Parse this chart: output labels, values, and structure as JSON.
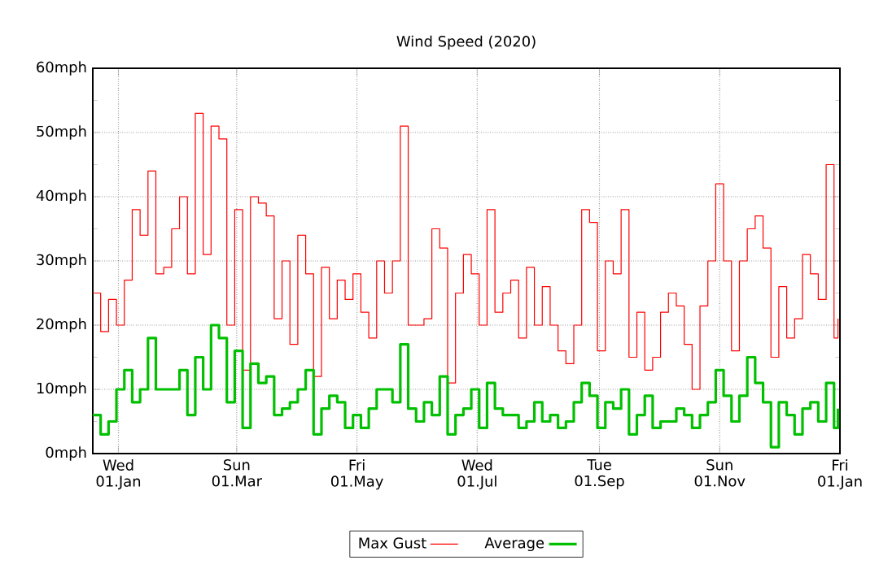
{
  "chart_data": {
    "type": "step",
    "title": "Wind Speed (2020)",
    "x": [
      "2019-12-19",
      "2019-12-23",
      "2019-12-27",
      "2019-12-31",
      "2020-01-04",
      "2020-01-08",
      "2020-01-12",
      "2020-01-16",
      "2020-01-20",
      "2020-01-24",
      "2020-01-28",
      "2020-02-01",
      "2020-02-05",
      "2020-02-09",
      "2020-02-13",
      "2020-02-17",
      "2020-02-21",
      "2020-02-25",
      "2020-02-29",
      "2020-03-04",
      "2020-03-08",
      "2020-03-12",
      "2020-03-16",
      "2020-03-20",
      "2020-03-24",
      "2020-03-28",
      "2020-04-01",
      "2020-04-05",
      "2020-04-09",
      "2020-04-13",
      "2020-04-17",
      "2020-04-21",
      "2020-04-25",
      "2020-04-29",
      "2020-05-03",
      "2020-05-07",
      "2020-05-11",
      "2020-05-15",
      "2020-05-19",
      "2020-05-23",
      "2020-05-27",
      "2020-05-31",
      "2020-06-04",
      "2020-06-08",
      "2020-06-12",
      "2020-06-16",
      "2020-06-20",
      "2020-06-24",
      "2020-06-28",
      "2020-07-02",
      "2020-07-06",
      "2020-07-10",
      "2020-07-14",
      "2020-07-18",
      "2020-07-22",
      "2020-07-26",
      "2020-07-30",
      "2020-08-03",
      "2020-08-07",
      "2020-08-11",
      "2020-08-15",
      "2020-08-19",
      "2020-08-23",
      "2020-08-27",
      "2020-08-31",
      "2020-09-04",
      "2020-09-08",
      "2020-09-12",
      "2020-09-16",
      "2020-09-20",
      "2020-09-24",
      "2020-09-28",
      "2020-10-02",
      "2020-10-06",
      "2020-10-10",
      "2020-10-14",
      "2020-10-18",
      "2020-10-22",
      "2020-10-26",
      "2020-10-30",
      "2020-11-03",
      "2020-11-07",
      "2020-11-11",
      "2020-11-15",
      "2020-11-19",
      "2020-11-23",
      "2020-11-27",
      "2020-12-01",
      "2020-12-05",
      "2020-12-09",
      "2020-12-13",
      "2020-12-17",
      "2020-12-21",
      "2020-12-25",
      "2020-12-29",
      "2020-12-31"
    ],
    "series": [
      {
        "name": "Max Gust",
        "color": "#ff0000",
        "values": [
          25,
          19,
          24,
          20,
          27,
          38,
          34,
          44,
          28,
          29,
          35,
          40,
          28,
          53,
          31,
          51,
          49,
          20,
          38,
          13,
          40,
          39,
          37,
          21,
          30,
          17,
          34,
          28,
          12,
          29,
          21,
          27,
          24,
          28,
          22,
          18,
          30,
          25,
          30,
          51,
          20,
          20,
          21,
          35,
          32,
          11,
          25,
          31,
          28,
          20,
          38,
          22,
          25,
          27,
          18,
          29,
          20,
          26,
          20,
          16,
          14,
          20,
          38,
          36,
          16,
          30,
          28,
          38,
          15,
          22,
          13,
          15,
          22,
          25,
          23,
          17,
          10,
          23,
          30,
          42,
          30,
          16,
          30,
          35,
          37,
          32,
          15,
          26,
          18,
          21,
          31,
          28,
          24,
          45,
          18,
          21
        ]
      },
      {
        "name": "Average",
        "color": "#00c000",
        "values": [
          6,
          3,
          5,
          10,
          13,
          8,
          10,
          18,
          10,
          10,
          10,
          13,
          6,
          15,
          10,
          20,
          18,
          8,
          16,
          4,
          14,
          11,
          12,
          6,
          7,
          8,
          10,
          13,
          3,
          7,
          9,
          8,
          4,
          6,
          4,
          7,
          10,
          10,
          8,
          17,
          7,
          5,
          8,
          6,
          12,
          3,
          6,
          7,
          10,
          4,
          11,
          7,
          6,
          6,
          4,
          5,
          8,
          5,
          6,
          4,
          5,
          8,
          11,
          9,
          4,
          8,
          7,
          10,
          3,
          6,
          9,
          4,
          5,
          5,
          7,
          6,
          4,
          6,
          8,
          13,
          9,
          5,
          9,
          15,
          11,
          8,
          1,
          8,
          6,
          3,
          7,
          8,
          5,
          11,
          4,
          7
        ]
      }
    ],
    "xlim": [
      "2019-12-19",
      "2021-01-01"
    ],
    "xticks": [
      {
        "value": "2020-01-01",
        "label": "Wed 01.Jan"
      },
      {
        "value": "2020-03-01",
        "label": "Sun 01.Mar"
      },
      {
        "value": "2020-05-01",
        "label": "Fri 01.May"
      },
      {
        "value": "2020-07-01",
        "label": "Wed 01.Jul"
      },
      {
        "value": "2020-09-01",
        "label": "Tue 01.Sep"
      },
      {
        "value": "2020-11-01",
        "label": "Sun 01.Nov"
      },
      {
        "value": "2021-01-01",
        "label": "Fri 01.Jan"
      }
    ],
    "ylim": [
      0,
      60
    ],
    "yticks": [
      {
        "value": 0,
        "label": "0mph"
      },
      {
        "value": 10,
        "label": "10mph"
      },
      {
        "value": 20,
        "label": "20mph"
      },
      {
        "value": 30,
        "label": "30mph"
      },
      {
        "value": 40,
        "label": "40mph"
      },
      {
        "value": 50,
        "label": "50mph"
      },
      {
        "value": 60,
        "label": "60mph"
      }
    ],
    "grid": true,
    "legend": "bottom",
    "line_style": "solid",
    "marker": "none"
  }
}
